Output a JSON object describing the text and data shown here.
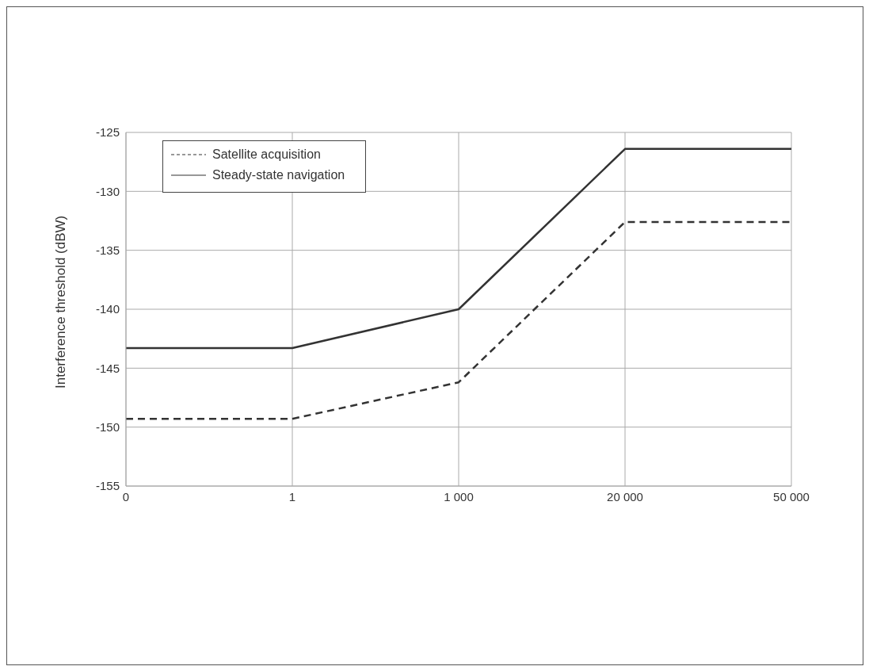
{
  "chart_data": {
    "type": "line",
    "ylabel": "Interference threshold (dBW)",
    "categories": [
      "0",
      "1",
      "1 000",
      "20 000",
      "50 000"
    ],
    "series": [
      {
        "name": "Satellite acquisition",
        "color": "#333333",
        "line_style": "dashed",
        "values": [
          -149.3,
          -149.3,
          -146.2,
          -132.6,
          -132.6
        ]
      },
      {
        "name": "Steady-state navigation",
        "color": "#333333",
        "line_style": "solid",
        "values": [
          -143.3,
          -143.3,
          -140,
          -126.4,
          -126.4
        ]
      }
    ],
    "ylim": [
      -155,
      -125
    ],
    "yticks": [
      -155,
      -150,
      -145,
      -140,
      -135,
      -130,
      -125
    ],
    "grid": true,
    "legend": "top left",
    "marker": "none"
  }
}
